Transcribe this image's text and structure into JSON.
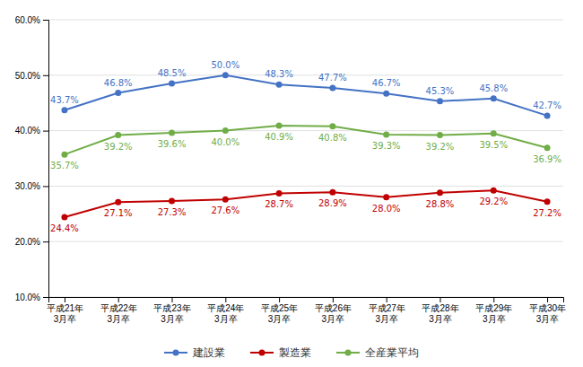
{
  "chart_data": {
    "type": "line",
    "categories": [
      "平成21年\n3月卒",
      "平成22年\n3月卒",
      "平成23年\n3月卒",
      "平成24年\n3月卒",
      "平成25年\n3月卒",
      "平成26年\n3月卒",
      "平成27年\n3月卒",
      "平成28年\n3月卒",
      "平成29年\n3月卒",
      "平成30年\n3月卒"
    ],
    "series": [
      {
        "name": "建設業",
        "color": "#4472C4",
        "values": [
          43.7,
          46.8,
          48.5,
          50.0,
          48.3,
          47.7,
          46.7,
          45.3,
          45.8,
          42.7
        ],
        "value_labels": [
          "43.7%",
          "46.8%",
          "48.5%",
          "50.0%",
          "48.3%",
          "47.7%",
          "46.7%",
          "45.3%",
          "45.8%",
          "42.7%"
        ]
      },
      {
        "name": "製造業",
        "color": "#C00000",
        "values": [
          24.4,
          27.1,
          27.3,
          27.6,
          28.7,
          28.9,
          28.0,
          28.8,
          29.2,
          27.2
        ],
        "value_labels": [
          "24.4%",
          "27.1%",
          "27.3%",
          "27.6%",
          "28.7%",
          "28.9%",
          "28.0%",
          "28.8%",
          "29.2%",
          "27.2%"
        ]
      },
      {
        "name": "全産業平均",
        "color": "#70AD47",
        "values": [
          35.7,
          39.2,
          39.6,
          40.0,
          40.9,
          40.8,
          39.3,
          39.2,
          39.5,
          36.9
        ],
        "value_labels": [
          "35.7%",
          "39.2%",
          "39.6%",
          "40.0%",
          "40.9%",
          "40.8%",
          "39.3%",
          "39.2%",
          "39.5%",
          "36.9%"
        ]
      }
    ],
    "ylim": [
      10.0,
      60.0
    ],
    "yticks": [
      {
        "value": 10.0,
        "label": "10.0%"
      },
      {
        "value": 20.0,
        "label": "20.0%"
      },
      {
        "value": 30.0,
        "label": "30.0%"
      },
      {
        "value": 40.0,
        "label": "40.0%"
      },
      {
        "value": 50.0,
        "label": "50.0%"
      },
      {
        "value": 60.0,
        "label": "60.0%"
      }
    ],
    "grid": true,
    "legend": "bottom",
    "data_labels": true,
    "marker": "circle"
  }
}
